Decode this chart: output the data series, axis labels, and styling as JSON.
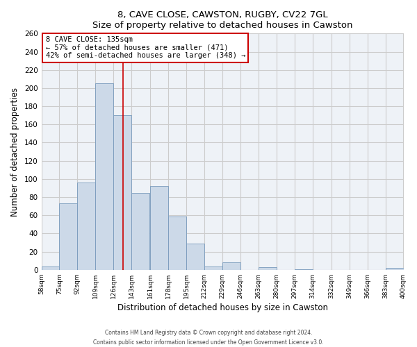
{
  "title": "8, CAVE CLOSE, CAWSTON, RUGBY, CV22 7GL",
  "subtitle": "Size of property relative to detached houses in Cawston",
  "xlabel": "Distribution of detached houses by size in Cawston",
  "ylabel": "Number of detached properties",
  "bin_labels": [
    "58sqm",
    "75sqm",
    "92sqm",
    "109sqm",
    "126sqm",
    "143sqm",
    "161sqm",
    "178sqm",
    "195sqm",
    "212sqm",
    "229sqm",
    "246sqm",
    "263sqm",
    "280sqm",
    "297sqm",
    "314sqm",
    "332sqm",
    "349sqm",
    "366sqm",
    "383sqm",
    "400sqm"
  ],
  "bar_values": [
    4,
    73,
    96,
    205,
    170,
    85,
    92,
    59,
    29,
    4,
    8,
    0,
    3,
    0,
    1,
    0,
    0,
    0,
    0,
    2,
    0
  ],
  "bar_color": "#ccd9e8",
  "bar_edge_color": "#7799bb",
  "bin_edges": [
    58,
    75,
    92,
    109,
    126,
    143,
    161,
    178,
    195,
    212,
    229,
    246,
    263,
    280,
    297,
    314,
    332,
    349,
    366,
    383,
    400
  ],
  "vline_color": "#cc0000",
  "annotation_text": "8 CAVE CLOSE: 135sqm\n← 57% of detached houses are smaller (471)\n42% of semi-detached houses are larger (348) →",
  "annotation_box_color": "#ffffff",
  "annotation_box_edge": "#cc0000",
  "ylim": [
    0,
    260
  ],
  "yticks": [
    0,
    20,
    40,
    60,
    80,
    100,
    120,
    140,
    160,
    180,
    200,
    220,
    240,
    260
  ],
  "footer_line1": "Contains HM Land Registry data © Crown copyright and database right 2024.",
  "footer_line2": "Contains public sector information licensed under the Open Government Licence v3.0.",
  "grid_color": "#cccccc",
  "background_color": "#eef2f7"
}
